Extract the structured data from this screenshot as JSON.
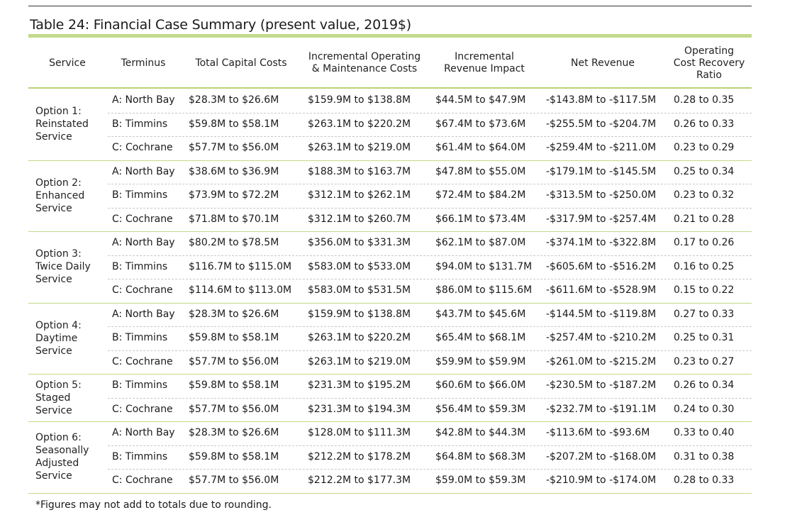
{
  "title": "Table 24: Financial Case Summary (present value, 2019$)",
  "headers": {
    "service": "Service",
    "terminus": "Terminus",
    "capital": "Total Capital Costs",
    "om": "Incremental Operating\n& Maintenance Costs",
    "revenue": "Incremental\nRevenue Impact",
    "net": "Net Revenue",
    "ratio": "Operating\nCost Recovery\nRatio"
  },
  "groups": [
    {
      "service": "Option 1:\nReinstated\nService",
      "rows": [
        {
          "terminus": "A: North Bay",
          "capital": "$28.3M to $26.6M",
          "om": "$159.9M to $138.8M",
          "revenue": "$44.5M to $47.9M",
          "net": "-$143.8M to -$117.5M",
          "ratio": "0.28 to 0.35"
        },
        {
          "terminus": "B: Timmins",
          "capital": "$59.8M to $58.1M",
          "om": "$263.1M to $220.2M",
          "revenue": "$67.4M to $73.6M",
          "net": "-$255.5M to -$204.7M",
          "ratio": "0.26 to 0.33"
        },
        {
          "terminus": "C: Cochrane",
          "capital": "$57.7M to $56.0M",
          "om": "$263.1M to $219.0M",
          "revenue": "$61.4M to $64.0M",
          "net": "-$259.4M to -$211.0M",
          "ratio": "0.23 to 0.29"
        }
      ]
    },
    {
      "service": "Option 2:\nEnhanced\nService",
      "rows": [
        {
          "terminus": "A: North Bay",
          "capital": "$38.6M to $36.9M",
          "om": "$188.3M to $163.7M",
          "revenue": "$47.8M to $55.0M",
          "net": "-$179.1M to -$145.5M",
          "ratio": "0.25 to 0.34"
        },
        {
          "terminus": "B: Timmins",
          "capital": "$73.9M to $72.2M",
          "om": "$312.1M to $262.1M",
          "revenue": "$72.4M to $84.2M",
          "net": "-$313.5M to -$250.0M",
          "ratio": "0.23 to 0.32"
        },
        {
          "terminus": "C: Cochrane",
          "capital": "$71.8M to $70.1M",
          "om": "$312.1M to $260.7M",
          "revenue": "$66.1M to $73.4M",
          "net": "-$317.9M to -$257.4M",
          "ratio": "0.21 to 0.28"
        }
      ]
    },
    {
      "service": "Option 3:\nTwice Daily\nService",
      "rows": [
        {
          "terminus": "A: North Bay",
          "capital": "$80.2M to $78.5M",
          "om": "$356.0M to $331.3M",
          "revenue": "$62.1M to $87.0M",
          "net": "-$374.1M to -$322.8M",
          "ratio": "0.17 to 0.26"
        },
        {
          "terminus": "B: Timmins",
          "capital": "$116.7M to $115.0M",
          "om": "$583.0M to $533.0M",
          "revenue": "$94.0M to $131.7M",
          "net": "-$605.6M to -$516.2M",
          "ratio": "0.16 to 0.25"
        },
        {
          "terminus": "C: Cochrane",
          "capital": "$114.6M to $113.0M",
          "om": "$583.0M to $531.5M",
          "revenue": "$86.0M to $115.6M",
          "net": "-$611.6M to -$528.9M",
          "ratio": "0.15 to 0.22"
        }
      ]
    },
    {
      "service": "Option 4:\nDaytime\nService",
      "rows": [
        {
          "terminus": "A: North Bay",
          "capital": "$28.3M to $26.6M",
          "om": "$159.9M to $138.8M",
          "revenue": "$43.7M to $45.6M",
          "net": "-$144.5M to -$119.8M",
          "ratio": "0.27 to 0.33"
        },
        {
          "terminus": "B: Timmins",
          "capital": "$59.8M to $58.1M",
          "om": "$263.1M to $220.2M",
          "revenue": "$65.4M to $68.1M",
          "net": "-$257.4M to -$210.2M",
          "ratio": "0.25 to 0.31"
        },
        {
          "terminus": "C: Cochrane",
          "capital": "$57.7M to $56.0M",
          "om": "$263.1M to $219.0M",
          "revenue": "$59.9M to $59.9M",
          "net": "-$261.0M to -$215.2M",
          "ratio": "0.23 to 0.27"
        }
      ]
    },
    {
      "service": "Option 5:\nStaged\nService",
      "rows": [
        {
          "terminus": "B: Timmins",
          "capital": "$59.8M to $58.1M",
          "om": "$231.3M to $195.2M",
          "revenue": "$60.6M to $66.0M",
          "net": "-$230.5M to -$187.2M",
          "ratio": "0.26 to 0.34"
        },
        {
          "terminus": "C: Cochrane",
          "capital": "$57.7M to $56.0M",
          "om": "$231.3M to $194.3M",
          "revenue": "$56.4M to $59.3M",
          "net": "-$232.7M to -$191.1M",
          "ratio": "0.24 to 0.30"
        }
      ]
    },
    {
      "service": "Option 6:\nSeasonally\nAdjusted\nService",
      "rows": [
        {
          "terminus": "A: North Bay",
          "capital": "$28.3M to $26.6M",
          "om": "$128.0M to $111.3M",
          "revenue": "$42.8M to $44.3M",
          "net": "-$113.6M to -$93.6M",
          "ratio": "0.33 to 0.40"
        },
        {
          "terminus": "B: Timmins",
          "capital": "$59.8M to $58.1M",
          "om": "$212.2M to $178.2M",
          "revenue": "$64.8M to $68.3M",
          "net": "-$207.2M to -$168.0M",
          "ratio": "0.31 to 0.38"
        },
        {
          "terminus": "C: Cochrane",
          "capital": "$57.7M to $56.0M",
          "om": "$212.2M to $177.3M",
          "revenue": "$59.0M to $59.3M",
          "net": "-$210.9M to -$174.0M",
          "ratio": "0.28 to 0.33"
        }
      ]
    }
  ],
  "footnote": "*Figures may not add to totals due to rounding."
}
